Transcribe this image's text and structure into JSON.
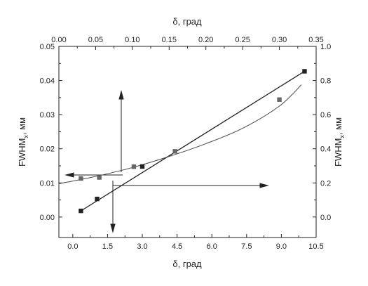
{
  "chart_data": {
    "type": "scatter",
    "title": "",
    "xlabel_bottom": {
      "main": "δ, град"
    },
    "xlabel_top": {
      "main": "δ, град"
    },
    "ylabel_left": {
      "main": "FWHM",
      "sub": "x",
      "unit": ", мм"
    },
    "ylabel_right": {
      "main": "FWHM",
      "sub": "x",
      "unit": ", мм"
    },
    "axes": {
      "bottom": {
        "range": [
          -0.6,
          10.5
        ],
        "ticks": [
          "0.0",
          "1.5",
          "3.0",
          "4.5",
          "6.0",
          "7.5",
          "9.0",
          "10.5"
        ],
        "tick_values": [
          0,
          1.5,
          3,
          4.5,
          6,
          7.5,
          9,
          10.5
        ]
      },
      "left": {
        "range": [
          -0.006,
          0.05
        ],
        "ticks": [
          "0.00",
          "0.01",
          "0.02",
          "0.03",
          "0.04",
          "0.05"
        ],
        "tick_values": [
          0,
          0.01,
          0.02,
          0.03,
          0.04,
          0.05
        ]
      },
      "top": {
        "range": [
          0.0,
          0.35
        ],
        "ticks": [
          "0.00",
          "0.05",
          "0.10",
          "0.15",
          "0.20",
          "0.25",
          "0.30",
          "0.35"
        ],
        "tick_values": [
          0,
          0.05,
          0.1,
          0.15,
          0.2,
          0.25,
          0.3,
          0.35
        ]
      },
      "right": {
        "range": [
          -0.12,
          1.0
        ],
        "ticks": [
          "0.0",
          "0.2",
          "0.4",
          "0.6",
          "0.8",
          "1.0"
        ],
        "tick_values": [
          0,
          0.2,
          0.4,
          0.6,
          0.8,
          1.0
        ]
      }
    },
    "grid": false,
    "series": [
      {
        "axes": "bottom-left",
        "marker": "square",
        "color": "#222222",
        "points": [
          {
            "x": 0.35,
            "y": 0.0018
          },
          {
            "x": 1.05,
            "y": 0.0053
          },
          {
            "x": 3.0,
            "y": 0.0148
          },
          {
            "x": 10.0,
            "y": 0.0427
          }
        ],
        "fit": {
          "type": "linear",
          "x_range": [
            0.35,
            10.0
          ],
          "y_range": [
            0.0018,
            0.0427
          ]
        }
      },
      {
        "axes": "top-right",
        "marker": "square",
        "color": "#666666",
        "points": [
          {
            "x": 0.03,
            "y": 0.226
          },
          {
            "x": 0.055,
            "y": 0.232
          },
          {
            "x": 0.102,
            "y": 0.295
          },
          {
            "x": 0.158,
            "y": 0.385
          },
          {
            "x": 0.3,
            "y": 0.688
          }
        ],
        "fit": {
          "type": "curve",
          "points": [
            {
              "x": 0.0,
              "y": 0.195
            },
            {
              "x": 0.05,
              "y": 0.238
            },
            {
              "x": 0.1,
              "y": 0.29
            },
            {
              "x": 0.15,
              "y": 0.355
            },
            {
              "x": 0.2,
              "y": 0.43
            },
            {
              "x": 0.25,
              "y": 0.52
            },
            {
              "x": 0.3,
              "y": 0.65
            },
            {
              "x": 0.33,
              "y": 0.775
            }
          ]
        }
      }
    ]
  }
}
